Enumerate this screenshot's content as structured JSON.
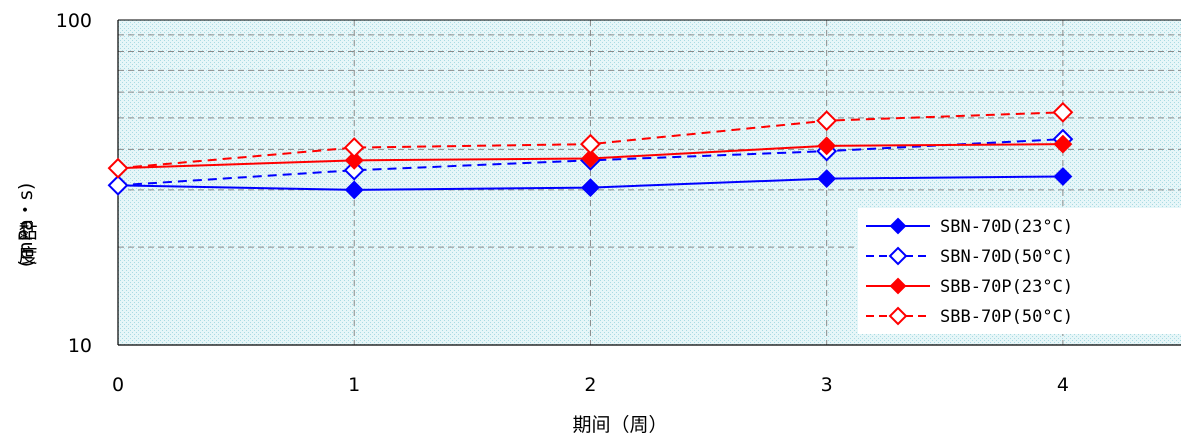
{
  "chart_data": {
    "type": "line",
    "xlabel": "期间（周）",
    "ylabel_unit": "(mPa・s)",
    "ylabel_chars": [
      "黏",
      "度"
    ],
    "x": [
      0,
      1,
      2,
      3,
      4
    ],
    "x_tick_labels": [
      "0",
      "1",
      "2",
      "3",
      "4"
    ],
    "xlim": [
      0,
      4.5
    ],
    "y_scale": "log",
    "ylim": [
      10,
      100
    ],
    "y_tick_labels": [
      "10",
      "100"
    ],
    "grid": true,
    "legend_position": "bottom-right",
    "series": [
      {
        "name": "SBN-70D(23°C)",
        "values": [
          31,
          30,
          30.5,
          32.5,
          33
        ],
        "color": "#0000ff",
        "dashed": false,
        "marker": "filled-diamond"
      },
      {
        "name": "SBN-70D(50°C)",
        "values": [
          31,
          34.5,
          37,
          39.5,
          43
        ],
        "color": "#0000ff",
        "dashed": true,
        "marker": "open-diamond"
      },
      {
        "name": "SBB-70P(23°C)",
        "values": [
          35,
          37,
          37.5,
          41,
          41.5
        ],
        "color": "#ff0000",
        "dashed": false,
        "marker": "filled-diamond"
      },
      {
        "name": "SBB-70P(50°C)",
        "values": [
          35,
          40.5,
          41.5,
          49,
          52
        ],
        "color": "#ff0000",
        "dashed": true,
        "marker": "open-diamond"
      }
    ]
  }
}
